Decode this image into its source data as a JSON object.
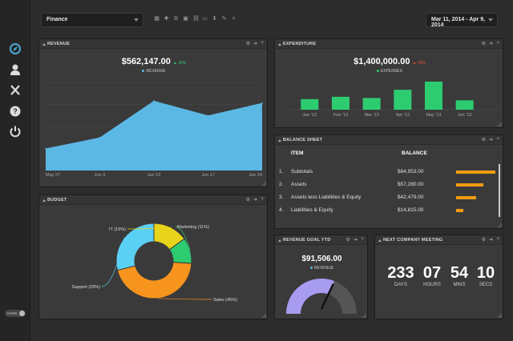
{
  "topbar": {
    "dashboard_select": "Finance",
    "date_range": "Mar 11, 2014 - Apr 9, 2014"
  },
  "sidebar": {
    "items": [
      {
        "icon": "compass-icon"
      },
      {
        "icon": "user-icon"
      },
      {
        "icon": "tools-icon"
      },
      {
        "icon": "help-icon"
      },
      {
        "icon": "power-icon"
      }
    ],
    "theme_toggle": "DARK"
  },
  "revenue": {
    "title": "REVENUE",
    "total": "$562,147.00",
    "change": "▲ 20%",
    "legend": "REVENUE",
    "color": "#5bb8e4",
    "chart_data": {
      "type": "area",
      "x": [
        "May 27",
        "Jun 3",
        "Jun 10",
        "Jun 17",
        "Jun 24"
      ],
      "values": [
        30,
        45,
        95,
        75,
        92
      ],
      "ylim": [
        0,
        120
      ],
      "grid": true
    }
  },
  "expenditure": {
    "title": "EXPENDITURE",
    "total": "$1,400,000.00",
    "change": "▲ 15%",
    "legend": "EXPENSES",
    "color": "#2ecc71",
    "chart_data": {
      "type": "bar",
      "categories": [
        "Jan '13",
        "Feb '13",
        "Mar '13",
        "Apr '13",
        "May '13",
        "Jun '13"
      ],
      "values": [
        9,
        11,
        10,
        17,
        24,
        8
      ],
      "ylim": [
        0,
        26
      ]
    }
  },
  "balance": {
    "title": "BALANCE SHEET",
    "col_item": "ITEM",
    "col_balance": "BALANCE",
    "rows": [
      {
        "num": "1.",
        "item": "Subtotals",
        "balance": "$84,953.00",
        "pct": 0.94
      },
      {
        "num": "2.",
        "item": "Assets",
        "balance": "$57,280.00",
        "pct": 0.66
      },
      {
        "num": "3.",
        "item": "Assets less Liabilities & Equity",
        "balance": "$42,479.00",
        "pct": 0.48
      },
      {
        "num": "4.",
        "item": "Liabilities & Equity",
        "balance": "$14,815.00",
        "pct": 0.17
      }
    ]
  },
  "budget": {
    "title": "BUDGET",
    "chart_data": {
      "type": "pie",
      "categories": [
        "Sales (45%)",
        "Support (29%)",
        "IT (15%)",
        "Marketing (11%)"
      ],
      "values": [
        45,
        29,
        15,
        11
      ],
      "colors": [
        "#f7941d",
        "#5bd0f5",
        "#e8d41a",
        "#2ecc71"
      ]
    }
  },
  "goal": {
    "title": "REVENUE GOAL YTD",
    "total": "$91,506.00",
    "legend": "REVENUE",
    "gauge_fraction": 0.62
  },
  "meeting": {
    "title": "NEXT COMPANY MEETING",
    "units": [
      {
        "value": "233",
        "label": "DAYS"
      },
      {
        "value": "07",
        "label": "HOURS"
      },
      {
        "value": "54",
        "label": "MINS"
      },
      {
        "value": "10",
        "label": "SECS"
      }
    ]
  }
}
